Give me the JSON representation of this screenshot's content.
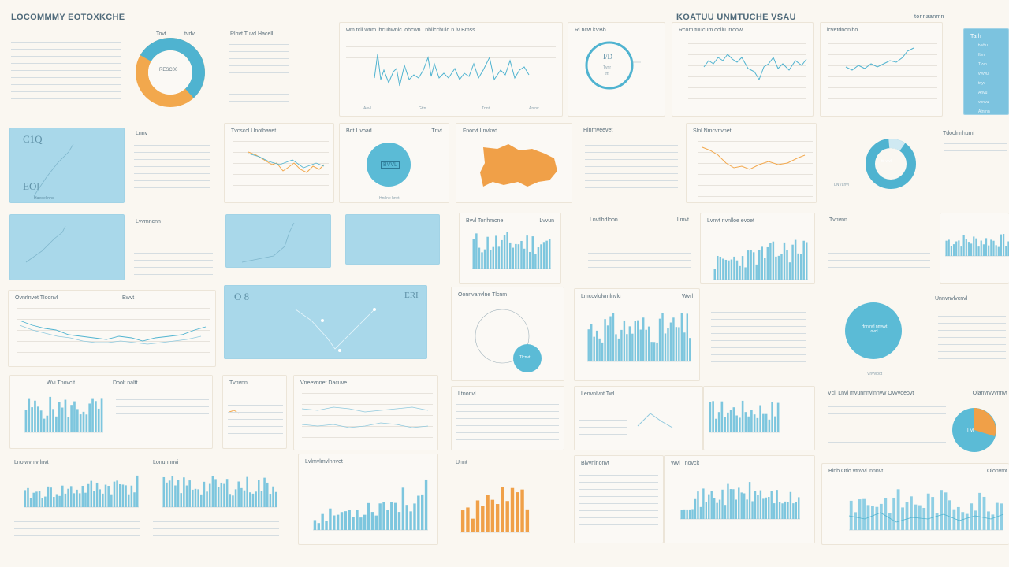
{
  "header": {
    "left_title": "LOCOMMMY EOTOXKCHE",
    "right_title": "KOATUU UNMTUCHE VSAU",
    "right_sub": "tonnaanmn"
  },
  "cards": {
    "donut": {
      "title_a": "Tovt",
      "title_b": "tvdv",
      "center": "RESC00"
    },
    "kpi_list": {
      "title": "Rlovt Tuvd Hacell"
    },
    "line_top": {
      "title": "wm tcll wnm lhcuhwnlc lohcwn | nhlicchuld n lv Bmss"
    },
    "ring": {
      "title": "Rl ncw kVBb",
      "center_a": "I/D",
      "center_b": "Tvnr",
      "center_c": "trtt"
    },
    "line_tr": {
      "title": "Rcom tuucum oollu lrroow"
    },
    "line_tr2": {
      "title": "lcvetdnonlho"
    },
    "side_blue": {
      "title": "Tarh",
      "items": [
        "tvvhu",
        "ftvn",
        "Tvvn",
        "vvvvu",
        "tnyv",
        "Anvu",
        "vnnvu",
        "Atnrnn"
      ]
    },
    "blue_kpi": {
      "value_a": "C1Q",
      "value_b": "EOl",
      "foot": "Haeeel nnv"
    },
    "list2": {
      "title": "Lnnv"
    },
    "line2": {
      "title": "Tvcsccl Unotbavet"
    },
    "circle2": {
      "title_a": "Bdt Uvoad",
      "title_b": "Tnvt",
      "label": "BVVL",
      "foot": "Hnrlne hnvt"
    },
    "map": {
      "title": "Fnorvt Lnvkvd"
    },
    "list3": {
      "title": "Hlnrnveevet"
    },
    "line3": {
      "title": "Slnl Nmcvnvnet"
    },
    "ring2": {
      "center": "ttt vtvl",
      "foot": "LNVLnvl"
    },
    "list4": {
      "title": "Tdoclnnhuml"
    },
    "bars1": {
      "title": "Lvvmncnn"
    },
    "bars2": {
      "title": "Bvvl Tonhmcne",
      "title_b": "Lvvun"
    },
    "bars3": {
      "title": "Lnvtlhdloon",
      "title_b": "Lmvt"
    },
    "bars4": {
      "title": "Lvnvt nvnlloe evoet"
    },
    "blue_mid": {
      "value_a": "O 8",
      "value_b": "ERI",
      "value_c": "Ll8"
    },
    "ring3": {
      "title": "Oonnvanvlne Tlcnm",
      "center": "Tlcnvt"
    },
    "bars5": {
      "title": "Lmccvlolvmlnvlc",
      "title_b": "Wvrl"
    },
    "circle3": {
      "title": "Vnvvloot",
      "center": "Hnn nvl nnvvvt ovcl"
    },
    "list5": {
      "title": "Tvnvnn"
    },
    "bars6": {
      "title": "Wvi Tnovclt",
      "title_b": "Doolt naltt"
    },
    "list6": {
      "title": "Ewvt"
    },
    "line6": {
      "title": "Ovnrlnvet Tloonvl"
    },
    "bars7": {
      "title": "Ltnonvl",
      "title_b": "Vneevnnet Dacuve"
    },
    "pie": {
      "title": "Vcll Lnvl mvunnnvlnnvw Ovvvoeovt",
      "title_b": "Olanvrvvvnnvt",
      "center": "Tlvl"
    },
    "bars8": {
      "title": "Dollarnlll Lonvmmnu Hlacde",
      "title_b": "Olonvmt"
    },
    "bars9": {
      "title": "Lnolwvnlv lnvt",
      "title_b": "Unnt"
    },
    "bars10": {
      "title": "Lvlmvlmvlnnvet",
      "title_b": "Lonunnnvi"
    },
    "list7": {
      "title": "Unnvnvlvcnvl"
    },
    "bars11": {
      "title": "Lenvnlvnt Twl"
    },
    "bars12": {
      "title": "Blnb Otlo vtnvvl lnnnvt",
      "title_b": "Blvvnlnonvt"
    },
    "footer_ticks": [
      "Aevl",
      "Gttn",
      "Llnlv",
      "Tnnt",
      "Anlnv"
    ]
  },
  "colors": {
    "accent": "#4fb3d0",
    "orange": "#f0a048",
    "panel_blue": "#a9d8ea",
    "bg": "#faf7f1"
  }
}
